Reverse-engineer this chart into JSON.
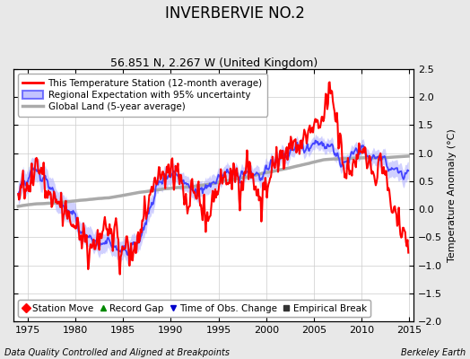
{
  "title": "INVERBERVIE NO.2",
  "subtitle": "56.851 N, 2.267 W (United Kingdom)",
  "ylabel": "Temperature Anomaly (°C)",
  "footer_left": "Data Quality Controlled and Aligned at Breakpoints",
  "footer_right": "Berkeley Earth",
  "xlim": [
    1973.5,
    2015.5
  ],
  "ylim": [
    -2.0,
    2.5
  ],
  "yticks": [
    -2,
    -1.5,
    -1,
    -0.5,
    0,
    0.5,
    1,
    1.5,
    2,
    2.5
  ],
  "xticks": [
    1975,
    1980,
    1985,
    1990,
    1995,
    2000,
    2005,
    2010,
    2015
  ],
  "legend_items": [
    {
      "label": "This Temperature Station (12-month average)",
      "color": "#FF0000",
      "lw": 1.8
    },
    {
      "label": "Regional Expectation with 95% uncertainty",
      "color": "#4444FF",
      "lw": 1.5
    },
    {
      "label": "Global Land (5-year average)",
      "color": "#AAAAAA",
      "lw": 2.5
    }
  ],
  "bottom_legend": [
    {
      "label": "Station Move",
      "marker": "D",
      "color": "#FF0000"
    },
    {
      "label": "Record Gap",
      "marker": "^",
      "color": "#008800"
    },
    {
      "label": "Time of Obs. Change",
      "marker": "v",
      "color": "#0000CC"
    },
    {
      "label": "Empirical Break",
      "marker": "s",
      "color": "#333333"
    }
  ],
  "background_color": "#e8e8e8",
  "plot_bg_color": "#ffffff",
  "grid_color": "#cccccc",
  "uncertainty_color": "#aaaaff",
  "uncertainty_alpha": 0.55,
  "station_line_color": "#FF0000",
  "regional_line_color": "#4444FF",
  "global_line_color": "#AAAAAA",
  "title_fontsize": 12,
  "subtitle_fontsize": 9,
  "tick_fontsize": 8,
  "ylabel_fontsize": 8,
  "legend_fontsize": 7.5,
  "footer_fontsize": 7
}
